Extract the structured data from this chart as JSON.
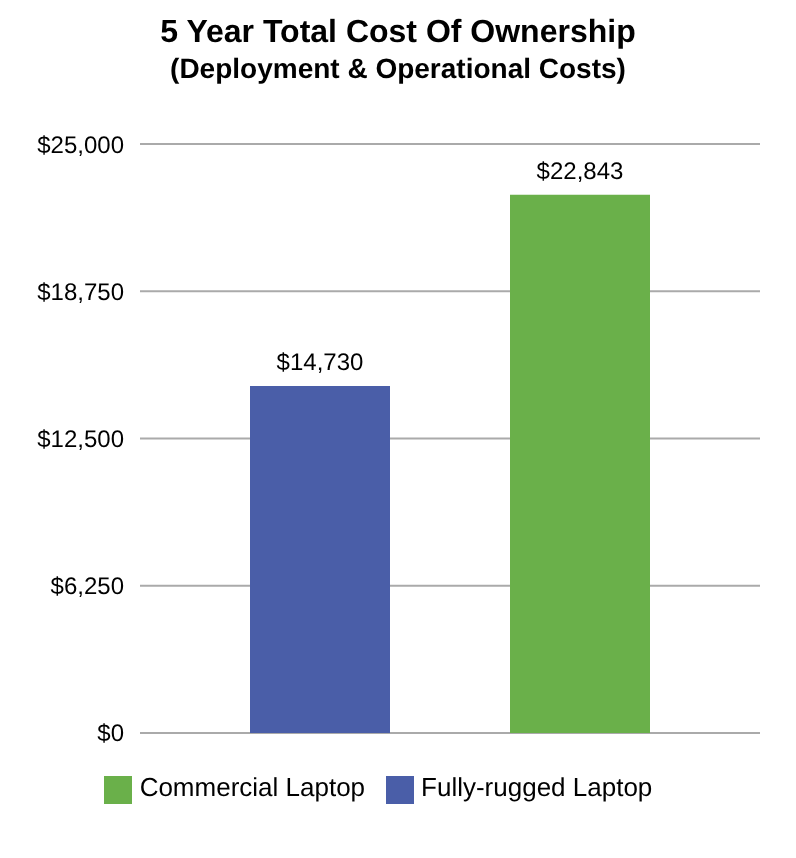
{
  "chart_data": {
    "type": "bar",
    "title": "5 Year Total Cost Of Ownership",
    "subtitle": "(Deployment & Operational Costs)",
    "categories": [
      null
    ],
    "series": [
      {
        "name": "Fully-rugged Laptop",
        "color": "#4a5ea8",
        "values": [
          14730
        ],
        "value_labels": [
          "$14,730"
        ]
      },
      {
        "name": "Commercial Laptop",
        "color": "#6ab04a",
        "values": [
          22843
        ],
        "value_labels": [
          "$22,843"
        ]
      }
    ],
    "ylim": [
      0,
      25000
    ],
    "yticks": [
      {
        "value": 0,
        "label": "$0"
      },
      {
        "value": 6250,
        "label": "$6,250"
      },
      {
        "value": 12500,
        "label": "$12,500"
      },
      {
        "value": 18750,
        "label": "$18,750"
      },
      {
        "value": 25000,
        "label": "$25,000"
      }
    ],
    "grid": "y",
    "legend": "bottom"
  }
}
